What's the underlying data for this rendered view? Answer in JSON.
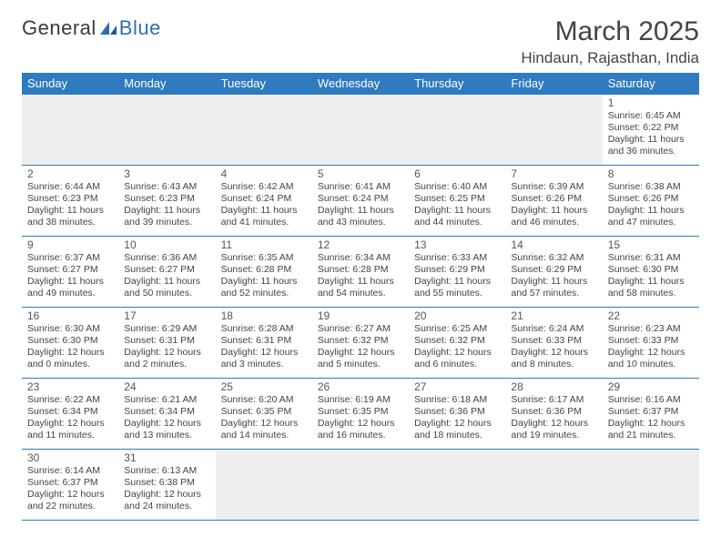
{
  "brand": {
    "part1": "General",
    "part2": "Blue"
  },
  "title": "March 2025",
  "location": "Hindaun, Rajasthan, India",
  "colors": {
    "header_bg": "#2f7bbf",
    "header_text": "#ffffff",
    "rule": "#2f7bbf",
    "blank_bg": "#eeeeee",
    "text": "#444444",
    "logo_blue": "#2f6fb0"
  },
  "weekdays": [
    "Sunday",
    "Monday",
    "Tuesday",
    "Wednesday",
    "Thursday",
    "Friday",
    "Saturday"
  ],
  "weeks": [
    [
      null,
      null,
      null,
      null,
      null,
      null,
      {
        "d": "1",
        "sr": "Sunrise: 6:45 AM",
        "ss": "Sunset: 6:22 PM",
        "dl1": "Daylight: 11 hours",
        "dl2": "and 36 minutes."
      }
    ],
    [
      {
        "d": "2",
        "sr": "Sunrise: 6:44 AM",
        "ss": "Sunset: 6:23 PM",
        "dl1": "Daylight: 11 hours",
        "dl2": "and 38 minutes."
      },
      {
        "d": "3",
        "sr": "Sunrise: 6:43 AM",
        "ss": "Sunset: 6:23 PM",
        "dl1": "Daylight: 11 hours",
        "dl2": "and 39 minutes."
      },
      {
        "d": "4",
        "sr": "Sunrise: 6:42 AM",
        "ss": "Sunset: 6:24 PM",
        "dl1": "Daylight: 11 hours",
        "dl2": "and 41 minutes."
      },
      {
        "d": "5",
        "sr": "Sunrise: 6:41 AM",
        "ss": "Sunset: 6:24 PM",
        "dl1": "Daylight: 11 hours",
        "dl2": "and 43 minutes."
      },
      {
        "d": "6",
        "sr": "Sunrise: 6:40 AM",
        "ss": "Sunset: 6:25 PM",
        "dl1": "Daylight: 11 hours",
        "dl2": "and 44 minutes."
      },
      {
        "d": "7",
        "sr": "Sunrise: 6:39 AM",
        "ss": "Sunset: 6:26 PM",
        "dl1": "Daylight: 11 hours",
        "dl2": "and 46 minutes."
      },
      {
        "d": "8",
        "sr": "Sunrise: 6:38 AM",
        "ss": "Sunset: 6:26 PM",
        "dl1": "Daylight: 11 hours",
        "dl2": "and 47 minutes."
      }
    ],
    [
      {
        "d": "9",
        "sr": "Sunrise: 6:37 AM",
        "ss": "Sunset: 6:27 PM",
        "dl1": "Daylight: 11 hours",
        "dl2": "and 49 minutes."
      },
      {
        "d": "10",
        "sr": "Sunrise: 6:36 AM",
        "ss": "Sunset: 6:27 PM",
        "dl1": "Daylight: 11 hours",
        "dl2": "and 50 minutes."
      },
      {
        "d": "11",
        "sr": "Sunrise: 6:35 AM",
        "ss": "Sunset: 6:28 PM",
        "dl1": "Daylight: 11 hours",
        "dl2": "and 52 minutes."
      },
      {
        "d": "12",
        "sr": "Sunrise: 6:34 AM",
        "ss": "Sunset: 6:28 PM",
        "dl1": "Daylight: 11 hours",
        "dl2": "and 54 minutes."
      },
      {
        "d": "13",
        "sr": "Sunrise: 6:33 AM",
        "ss": "Sunset: 6:29 PM",
        "dl1": "Daylight: 11 hours",
        "dl2": "and 55 minutes."
      },
      {
        "d": "14",
        "sr": "Sunrise: 6:32 AM",
        "ss": "Sunset: 6:29 PM",
        "dl1": "Daylight: 11 hours",
        "dl2": "and 57 minutes."
      },
      {
        "d": "15",
        "sr": "Sunrise: 6:31 AM",
        "ss": "Sunset: 6:30 PM",
        "dl1": "Daylight: 11 hours",
        "dl2": "and 58 minutes."
      }
    ],
    [
      {
        "d": "16",
        "sr": "Sunrise: 6:30 AM",
        "ss": "Sunset: 6:30 PM",
        "dl1": "Daylight: 12 hours",
        "dl2": "and 0 minutes."
      },
      {
        "d": "17",
        "sr": "Sunrise: 6:29 AM",
        "ss": "Sunset: 6:31 PM",
        "dl1": "Daylight: 12 hours",
        "dl2": "and 2 minutes."
      },
      {
        "d": "18",
        "sr": "Sunrise: 6:28 AM",
        "ss": "Sunset: 6:31 PM",
        "dl1": "Daylight: 12 hours",
        "dl2": "and 3 minutes."
      },
      {
        "d": "19",
        "sr": "Sunrise: 6:27 AM",
        "ss": "Sunset: 6:32 PM",
        "dl1": "Daylight: 12 hours",
        "dl2": "and 5 minutes."
      },
      {
        "d": "20",
        "sr": "Sunrise: 6:25 AM",
        "ss": "Sunset: 6:32 PM",
        "dl1": "Daylight: 12 hours",
        "dl2": "and 6 minutes."
      },
      {
        "d": "21",
        "sr": "Sunrise: 6:24 AM",
        "ss": "Sunset: 6:33 PM",
        "dl1": "Daylight: 12 hours",
        "dl2": "and 8 minutes."
      },
      {
        "d": "22",
        "sr": "Sunrise: 6:23 AM",
        "ss": "Sunset: 6:33 PM",
        "dl1": "Daylight: 12 hours",
        "dl2": "and 10 minutes."
      }
    ],
    [
      {
        "d": "23",
        "sr": "Sunrise: 6:22 AM",
        "ss": "Sunset: 6:34 PM",
        "dl1": "Daylight: 12 hours",
        "dl2": "and 11 minutes."
      },
      {
        "d": "24",
        "sr": "Sunrise: 6:21 AM",
        "ss": "Sunset: 6:34 PM",
        "dl1": "Daylight: 12 hours",
        "dl2": "and 13 minutes."
      },
      {
        "d": "25",
        "sr": "Sunrise: 6:20 AM",
        "ss": "Sunset: 6:35 PM",
        "dl1": "Daylight: 12 hours",
        "dl2": "and 14 minutes."
      },
      {
        "d": "26",
        "sr": "Sunrise: 6:19 AM",
        "ss": "Sunset: 6:35 PM",
        "dl1": "Daylight: 12 hours",
        "dl2": "and 16 minutes."
      },
      {
        "d": "27",
        "sr": "Sunrise: 6:18 AM",
        "ss": "Sunset: 6:36 PM",
        "dl1": "Daylight: 12 hours",
        "dl2": "and 18 minutes."
      },
      {
        "d": "28",
        "sr": "Sunrise: 6:17 AM",
        "ss": "Sunset: 6:36 PM",
        "dl1": "Daylight: 12 hours",
        "dl2": "and 19 minutes."
      },
      {
        "d": "29",
        "sr": "Sunrise: 6:16 AM",
        "ss": "Sunset: 6:37 PM",
        "dl1": "Daylight: 12 hours",
        "dl2": "and 21 minutes."
      }
    ],
    [
      {
        "d": "30",
        "sr": "Sunrise: 6:14 AM",
        "ss": "Sunset: 6:37 PM",
        "dl1": "Daylight: 12 hours",
        "dl2": "and 22 minutes."
      },
      {
        "d": "31",
        "sr": "Sunrise: 6:13 AM",
        "ss": "Sunset: 6:38 PM",
        "dl1": "Daylight: 12 hours",
        "dl2": "and 24 minutes."
      },
      null,
      null,
      null,
      null,
      null
    ]
  ]
}
